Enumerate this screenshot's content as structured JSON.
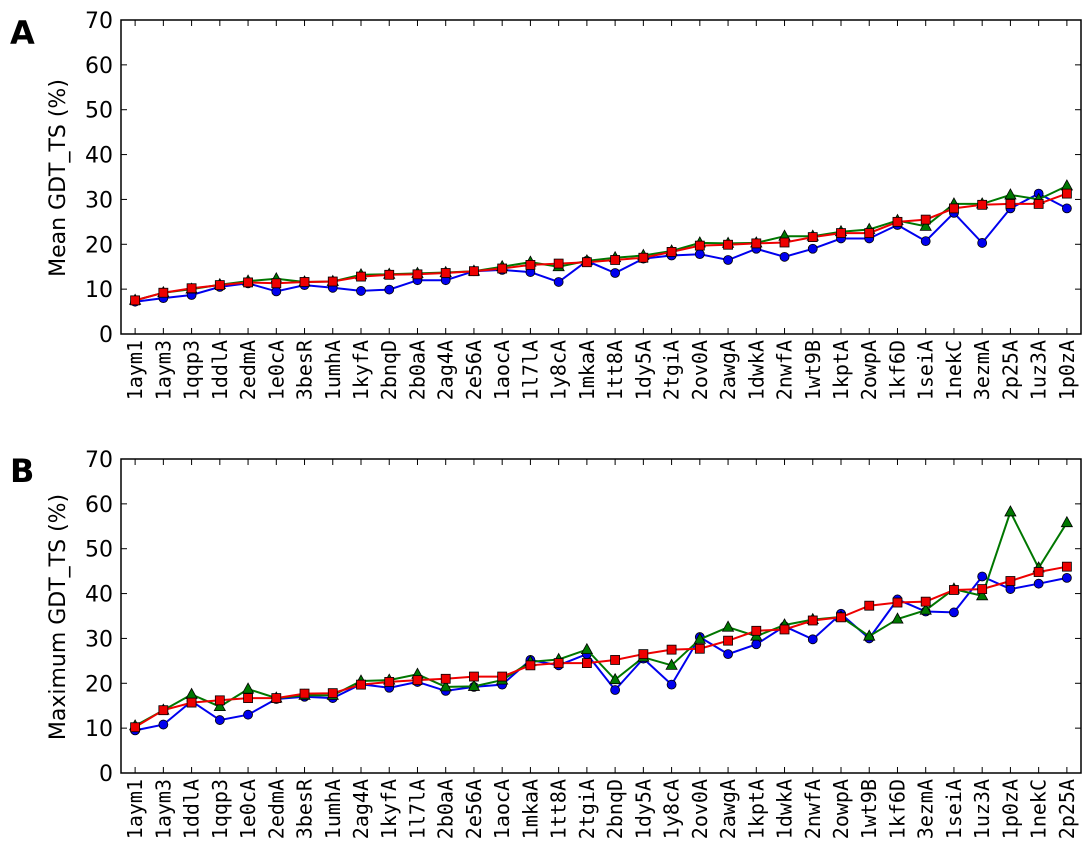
{
  "chart_data": [
    {
      "type": "line",
      "panel_label": "A",
      "ylabel": "Mean GDT_TS (%)",
      "xlabel": "",
      "ylim": [
        0,
        70
      ],
      "yticks": [
        0,
        10,
        20,
        30,
        40,
        50,
        60,
        70
      ],
      "grid": false,
      "categories": [
        "1aym1",
        "1aym3",
        "1qqp3",
        "1ddlA",
        "2edmA",
        "1e0cA",
        "3besR",
        "1umhA",
        "1kyfA",
        "2bnqD",
        "2b0aA",
        "2ag4A",
        "2e56A",
        "1aocA",
        "1l7lA",
        "1y8cA",
        "1mkaA",
        "1tt8A",
        "1dy5A",
        "2tgiA",
        "2ov0A",
        "2awgA",
        "1dwkA",
        "2nwfA",
        "1wt9B",
        "1kptA",
        "2owpA",
        "1kf6D",
        "1seiA",
        "1nekC",
        "3ezmA",
        "2p25A",
        "1uz3A",
        "1p0zA"
      ],
      "series": [
        {
          "color": "#0000ee",
          "marker": "circle",
          "values": [
            7.2,
            8.0,
            8.7,
            10.5,
            11.3,
            9.5,
            10.9,
            10.3,
            9.6,
            9.9,
            12.0,
            12.0,
            14.0,
            14.3,
            13.8,
            11.6,
            16.3,
            13.6,
            16.8,
            17.5,
            17.8,
            16.5,
            19.0,
            17.2,
            19.0,
            21.3,
            21.3,
            24.3,
            20.7,
            27.0,
            20.3,
            28.0,
            31.3,
            28.0
          ]
        },
        {
          "color": "#007700",
          "marker": "triangle",
          "values": [
            7.5,
            9.2,
            10.0,
            11.0,
            11.8,
            12.3,
            11.6,
            11.7,
            13.2,
            13.3,
            13.5,
            13.7,
            14.0,
            15.0,
            16.0,
            15.0,
            16.3,
            17.0,
            17.5,
            18.5,
            20.3,
            20.2,
            20.3,
            21.8,
            21.8,
            22.8,
            23.3,
            25.3,
            24.0,
            29.0,
            29.0,
            31.0,
            30.0,
            33.0
          ]
        },
        {
          "color": "#ee0000",
          "marker": "square",
          "values": [
            7.5,
            9.2,
            10.2,
            10.9,
            11.5,
            11.3,
            11.6,
            11.7,
            12.8,
            13.2,
            13.3,
            13.6,
            14.0,
            14.6,
            15.4,
            15.7,
            16.0,
            16.5,
            17.0,
            18.3,
            19.7,
            19.9,
            20.2,
            20.4,
            21.6,
            22.5,
            22.5,
            25.0,
            25.5,
            28.0,
            28.8,
            29.0,
            29.0,
            31.3
          ]
        }
      ]
    },
    {
      "type": "line",
      "panel_label": "B",
      "ylabel": "Maximum GDT_TS (%)",
      "xlabel": "",
      "ylim": [
        0,
        70
      ],
      "yticks": [
        0,
        10,
        20,
        30,
        40,
        50,
        60,
        70
      ],
      "grid": false,
      "categories": [
        "1aym1",
        "1aym3",
        "1ddlA",
        "1qqp3",
        "1e0cA",
        "2edmA",
        "3besR",
        "1umhA",
        "2ag4A",
        "1kyfA",
        "1l7lA",
        "2b0aA",
        "2e56A",
        "1aocA",
        "1mkaA",
        "1tt8A",
        "2tgiA",
        "2bnqD",
        "1dy5A",
        "1y8cA",
        "2ov0A",
        "2awgA",
        "1kptA",
        "1dwkA",
        "2nwfA",
        "2owpA",
        "1wt9B",
        "1kf6D",
        "3ezmA",
        "1seiA",
        "1uz3A",
        "1p0zA",
        "1nekC",
        "2p25A"
      ],
      "series": [
        {
          "color": "#0000ee",
          "marker": "circle",
          "values": [
            9.5,
            10.8,
            16.0,
            11.8,
            13.0,
            16.5,
            17.0,
            16.7,
            19.8,
            19.0,
            20.3,
            18.3,
            19.2,
            19.7,
            25.2,
            24.0,
            26.5,
            18.5,
            25.5,
            19.7,
            30.3,
            26.5,
            28.7,
            32.7,
            29.8,
            35.5,
            30.0,
            38.7,
            36.0,
            35.8,
            43.8,
            41.0,
            42.2,
            43.5
          ]
        },
        {
          "color": "#007700",
          "marker": "triangle",
          "values": [
            10.5,
            14.0,
            17.5,
            14.8,
            18.7,
            16.7,
            17.3,
            17.3,
            20.5,
            20.7,
            22.0,
            19.2,
            19.3,
            20.7,
            24.8,
            25.3,
            27.5,
            20.8,
            25.8,
            24.0,
            29.8,
            32.5,
            30.5,
            33.0,
            34.2,
            34.8,
            30.5,
            34.3,
            36.3,
            41.0,
            39.5,
            58.2,
            45.7,
            55.8
          ]
        },
        {
          "color": "#ee0000",
          "marker": "square",
          "values": [
            10.2,
            14.0,
            15.7,
            16.2,
            16.7,
            16.7,
            17.7,
            17.8,
            19.7,
            20.3,
            20.7,
            21.0,
            21.5,
            21.5,
            24.0,
            24.5,
            24.5,
            25.2,
            26.5,
            27.5,
            27.7,
            29.5,
            31.7,
            32.0,
            34.0,
            34.7,
            37.3,
            38.0,
            38.2,
            40.8,
            41.0,
            42.8,
            44.8,
            46.0
          ]
        }
      ]
    }
  ]
}
